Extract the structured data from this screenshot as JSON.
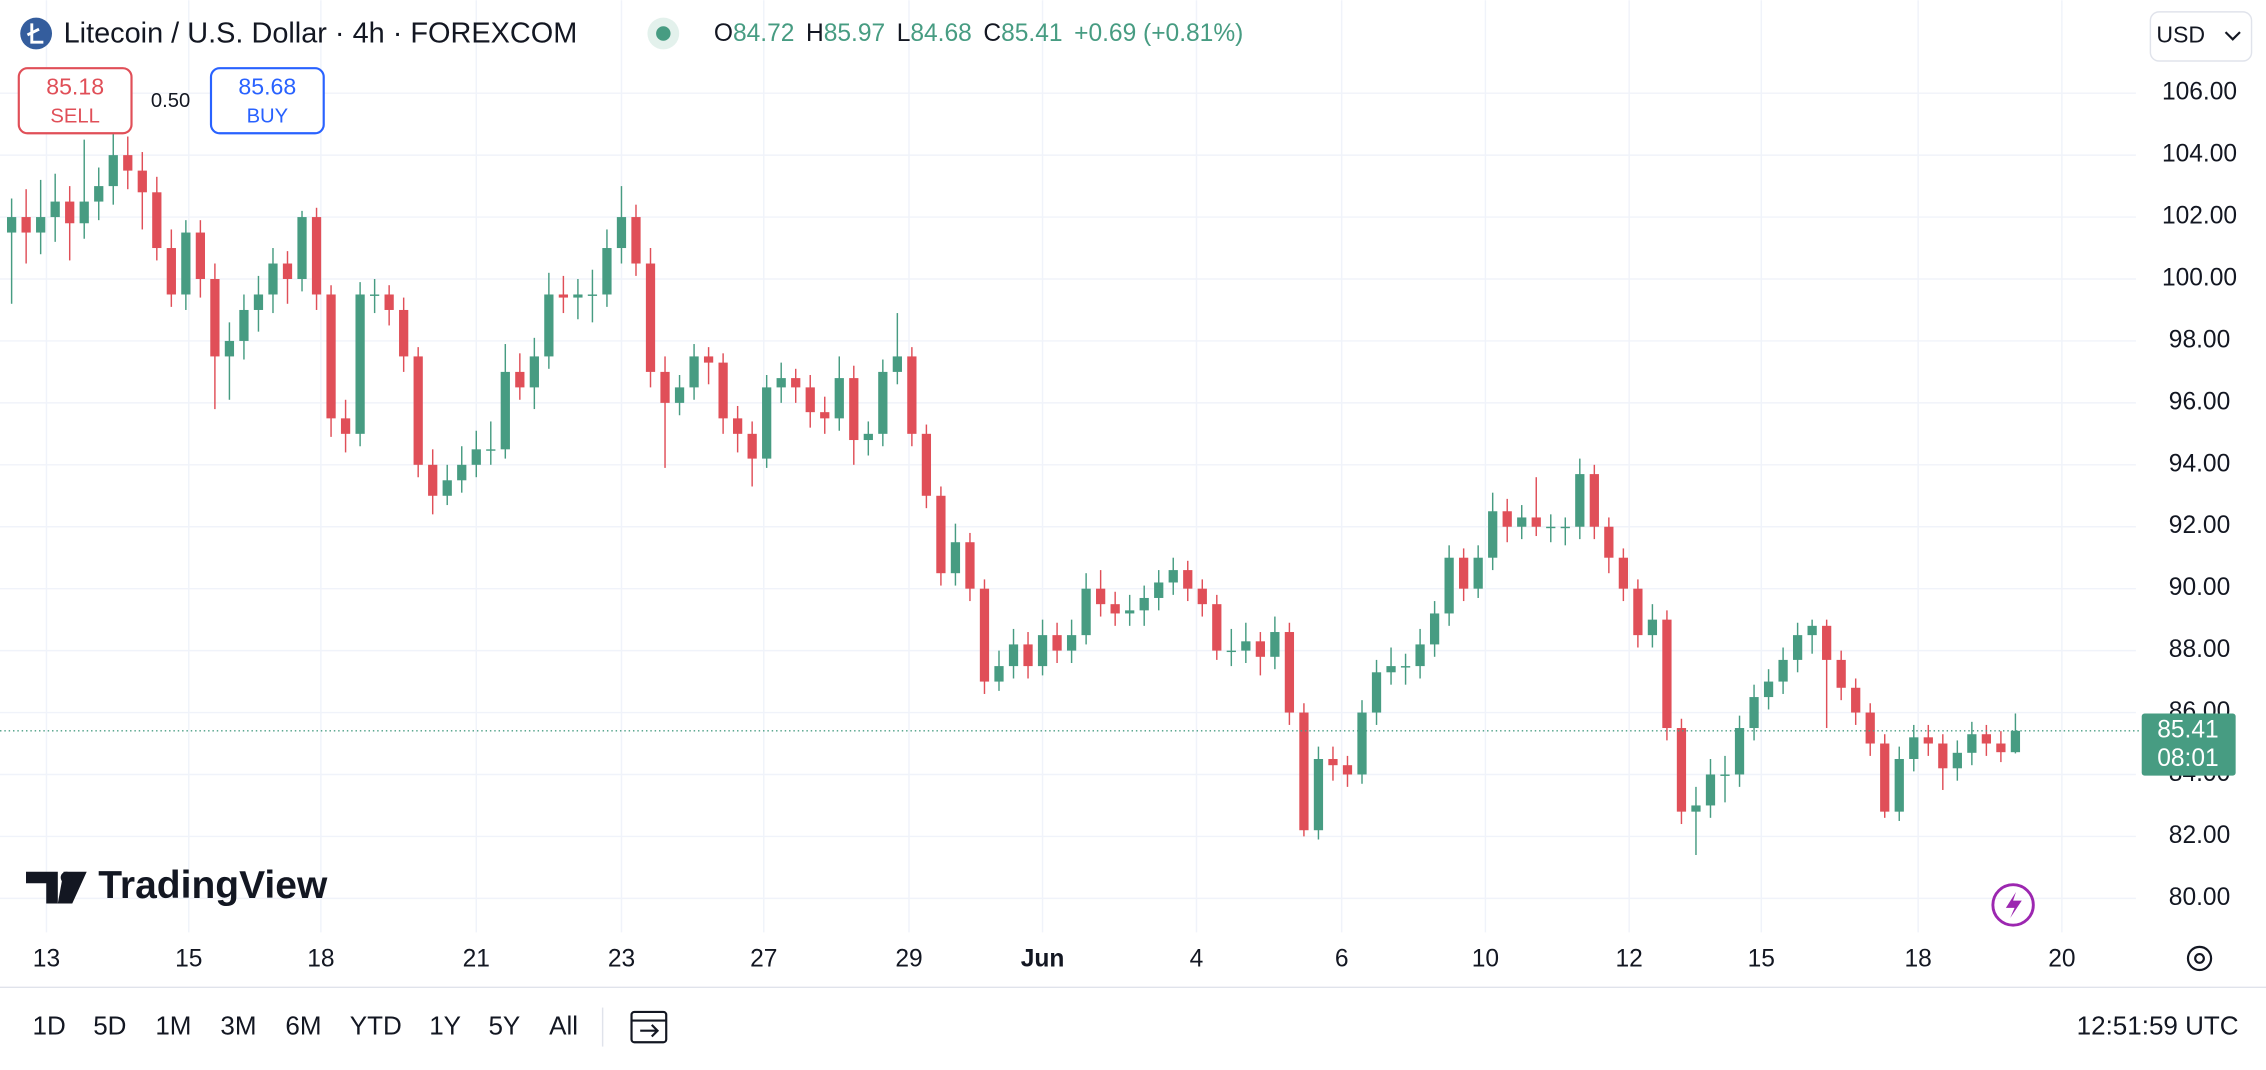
{
  "header": {
    "title": "Litecoin / U.S. Dollar · 4h · FOREXCOM",
    "ohlc_labels": [
      "O",
      "H",
      "L",
      "C"
    ],
    "ohlc_values": [
      84.72,
      85.97,
      84.68,
      85.41
    ],
    "change": "+0.69 (+0.81%)",
    "currency": "USD"
  },
  "trade": {
    "sell_price": 85.18,
    "sell_label": "SELL",
    "spread": "0.50",
    "buy_price": 85.68,
    "buy_label": "BUY"
  },
  "chart_data": {
    "type": "candlestick",
    "up_color": "#479c82",
    "down_color": "#e04f58",
    "grid": true,
    "ylim": [
      78.9,
      109.0
    ],
    "yticks": [
      {
        "value": 80,
        "label": "80.00"
      },
      {
        "value": 82,
        "label": "82.00"
      },
      {
        "value": 84,
        "label": "84.00"
      },
      {
        "value": 86,
        "label": "86.00"
      },
      {
        "value": 88,
        "label": "88.00"
      },
      {
        "value": 90,
        "label": "90.00"
      },
      {
        "value": 92,
        "label": "92.00"
      },
      {
        "value": 94,
        "label": "94.00"
      },
      {
        "value": 96,
        "label": "96.00"
      },
      {
        "value": 98,
        "label": "98.00"
      },
      {
        "value": 100,
        "label": "100.00"
      },
      {
        "value": 102,
        "label": "102.00"
      },
      {
        "value": 104,
        "label": "104.00"
      },
      {
        "value": 106,
        "label": "106.00"
      }
    ],
    "xlim": [
      -0.8,
      146.3
    ],
    "xticks": [
      {
        "value": 2.4,
        "label": "13"
      },
      {
        "value": 12.2,
        "label": "15"
      },
      {
        "value": 21.3,
        "label": "18"
      },
      {
        "value": 32.0,
        "label": "21"
      },
      {
        "value": 42.0,
        "label": "23"
      },
      {
        "value": 51.8,
        "label": "27"
      },
      {
        "value": 61.8,
        "label": "29"
      },
      {
        "value": 71.0,
        "label": "Jun"
      },
      {
        "value": 81.6,
        "label": "4"
      },
      {
        "value": 91.6,
        "label": "6"
      },
      {
        "value": 101.5,
        "label": "10"
      },
      {
        "value": 111.4,
        "label": "12"
      },
      {
        "value": 120.5,
        "label": "15"
      },
      {
        "value": 131.3,
        "label": "18"
      },
      {
        "value": 141.2,
        "label": "20"
      }
    ],
    "last_price": 85.41,
    "countdown": "08:01",
    "candles": [
      [
        101.5,
        102.6,
        99.2,
        102
      ],
      [
        102,
        102.9,
        100.5,
        101.5
      ],
      [
        101.5,
        103.2,
        100.8,
        102
      ],
      [
        102,
        103.4,
        101.2,
        102.5
      ],
      [
        102.5,
        103.0,
        100.6,
        101.8
      ],
      [
        101.8,
        104.5,
        101.3,
        102.5
      ],
      [
        102.5,
        103.6,
        101.9,
        103
      ],
      [
        103,
        104.8,
        102.4,
        104
      ],
      [
        104,
        104.6,
        102.9,
        103.5
      ],
      [
        103.5,
        104.1,
        101.6,
        102.8
      ],
      [
        102.8,
        103.3,
        100.6,
        101
      ],
      [
        101,
        101.6,
        99.1,
        99.5
      ],
      [
        99.5,
        101.9,
        99.0,
        101.5
      ],
      [
        101.5,
        101.9,
        99.4,
        100
      ],
      [
        100,
        100.5,
        95.8,
        97.5
      ],
      [
        97.5,
        98.6,
        96.1,
        98
      ],
      [
        98,
        99.5,
        97.4,
        99
      ],
      [
        99,
        100.1,
        98.3,
        99.5
      ],
      [
        99.5,
        101.0,
        98.9,
        100.5
      ],
      [
        100.5,
        100.9,
        99.2,
        100
      ],
      [
        100,
        102.2,
        99.6,
        102
      ],
      [
        102,
        102.3,
        99.0,
        99.5
      ],
      [
        99.5,
        99.8,
        94.9,
        95.5
      ],
      [
        95.5,
        96.1,
        94.4,
        95
      ],
      [
        95,
        99.9,
        94.6,
        99.5
      ],
      [
        99.5,
        100.0,
        98.9,
        99.5
      ],
      [
        99.5,
        99.8,
        98.5,
        99
      ],
      [
        99,
        99.4,
        97.0,
        97.5
      ],
      [
        97.5,
        97.8,
        93.6,
        94
      ],
      [
        94,
        94.5,
        92.4,
        93
      ],
      [
        93,
        94.0,
        92.7,
        93.5
      ],
      [
        93.5,
        94.6,
        93.1,
        94
      ],
      [
        94,
        95.1,
        93.6,
        94.5
      ],
      [
        94.5,
        95.4,
        94.0,
        94.5
      ],
      [
        94.5,
        97.9,
        94.2,
        97
      ],
      [
        97,
        97.6,
        96.1,
        96.5
      ],
      [
        96.5,
        98.1,
        95.8,
        97.5
      ],
      [
        97.5,
        100.2,
        97.1,
        99.5
      ],
      [
        99.5,
        100.1,
        98.9,
        99.4
      ],
      [
        99.4,
        100.0,
        98.7,
        99.5
      ],
      [
        99.5,
        100.3,
        98.6,
        99.5
      ],
      [
        99.5,
        101.6,
        99.1,
        101
      ],
      [
        101,
        103.0,
        100.5,
        102
      ],
      [
        102,
        102.4,
        100.1,
        100.5
      ],
      [
        100.5,
        101.0,
        96.5,
        97
      ],
      [
        97,
        97.5,
        93.9,
        96
      ],
      [
        96,
        96.9,
        95.6,
        96.5
      ],
      [
        96.5,
        97.9,
        96.1,
        97.5
      ],
      [
        97.5,
        97.8,
        96.6,
        97.3
      ],
      [
        97.3,
        97.6,
        95.0,
        95.5
      ],
      [
        95.5,
        95.9,
        94.4,
        95
      ],
      [
        95,
        95.4,
        93.3,
        94.2
      ],
      [
        94.2,
        96.9,
        93.9,
        96.5
      ],
      [
        96.5,
        97.3,
        96.0,
        96.8
      ],
      [
        96.8,
        97.1,
        96.0,
        96.5
      ],
      [
        96.5,
        96.9,
        95.2,
        95.7
      ],
      [
        95.7,
        96.2,
        95.0,
        95.5
      ],
      [
        95.5,
        97.5,
        95.1,
        96.8
      ],
      [
        96.8,
        97.2,
        94.0,
        94.8
      ],
      [
        94.8,
        95.4,
        94.3,
        95
      ],
      [
        95,
        97.4,
        94.6,
        97
      ],
      [
        97,
        98.9,
        96.6,
        97.5
      ],
      [
        97.5,
        97.8,
        94.6,
        95
      ],
      [
        95,
        95.3,
        92.6,
        93
      ],
      [
        93,
        93.3,
        90.1,
        90.5
      ],
      [
        90.5,
        92.1,
        90.1,
        91.5
      ],
      [
        91.5,
        91.8,
        89.6,
        90
      ],
      [
        90,
        90.3,
        86.6,
        87
      ],
      [
        87,
        88.0,
        86.7,
        87.5
      ],
      [
        87.5,
        88.7,
        87.1,
        88.2
      ],
      [
        88.2,
        88.6,
        87.1,
        87.5
      ],
      [
        87.5,
        89.0,
        87.2,
        88.5
      ],
      [
        88.5,
        88.9,
        87.6,
        88
      ],
      [
        88,
        89.0,
        87.6,
        88.5
      ],
      [
        88.5,
        90.5,
        88.2,
        90
      ],
      [
        90,
        90.6,
        89.1,
        89.5
      ],
      [
        89.5,
        89.9,
        88.8,
        89.2
      ],
      [
        89.2,
        89.8,
        88.8,
        89.3
      ],
      [
        89.3,
        90.1,
        88.8,
        89.7
      ],
      [
        89.7,
        90.6,
        89.3,
        90.2
      ],
      [
        90.2,
        91.0,
        89.8,
        90.6
      ],
      [
        90.6,
        90.9,
        89.6,
        90
      ],
      [
        90,
        90.3,
        89.1,
        89.5
      ],
      [
        89.5,
        89.8,
        87.7,
        88
      ],
      [
        88,
        88.7,
        87.5,
        88
      ],
      [
        88,
        88.9,
        87.6,
        88.3
      ],
      [
        88.3,
        88.6,
        87.2,
        87.8
      ],
      [
        87.8,
        89.1,
        87.4,
        88.6
      ],
      [
        88.6,
        88.9,
        85.6,
        86
      ],
      [
        86,
        86.3,
        82.0,
        82.2
      ],
      [
        82.2,
        84.9,
        81.9,
        84.5
      ],
      [
        84.5,
        84.9,
        83.8,
        84.3
      ],
      [
        84.3,
        84.6,
        83.6,
        84
      ],
      [
        84,
        86.4,
        83.7,
        86
      ],
      [
        86,
        87.7,
        85.6,
        87.3
      ],
      [
        87.3,
        88.1,
        86.9,
        87.5
      ],
      [
        87.5,
        87.9,
        86.9,
        87.5
      ],
      [
        87.5,
        88.7,
        87.1,
        88.2
      ],
      [
        88.2,
        89.6,
        87.8,
        89.2
      ],
      [
        89.2,
        91.4,
        88.8,
        91
      ],
      [
        91,
        91.3,
        89.6,
        90
      ],
      [
        90,
        91.4,
        89.7,
        91
      ],
      [
        91,
        93.1,
        90.6,
        92.5
      ],
      [
        92.5,
        92.9,
        91.5,
        92
      ],
      [
        92,
        92.7,
        91.6,
        92.3
      ],
      [
        92.3,
        93.6,
        91.7,
        92
      ],
      [
        92,
        92.4,
        91.5,
        92
      ],
      [
        92,
        92.3,
        91.4,
        92
      ],
      [
        92,
        94.2,
        91.6,
        93.7
      ],
      [
        93.7,
        94.0,
        91.6,
        92
      ],
      [
        92,
        92.3,
        90.5,
        91
      ],
      [
        91,
        91.3,
        89.6,
        90
      ],
      [
        90,
        90.3,
        88.1,
        88.5
      ],
      [
        88.5,
        89.5,
        88.1,
        89
      ],
      [
        89,
        89.3,
        85.1,
        85.5
      ],
      [
        85.5,
        85.8,
        82.4,
        82.8
      ],
      [
        82.8,
        83.6,
        81.4,
        83
      ],
      [
        83,
        84.5,
        82.6,
        84
      ],
      [
        84,
        84.6,
        83.1,
        84
      ],
      [
        84,
        85.9,
        83.6,
        85.5
      ],
      [
        85.5,
        86.9,
        85.1,
        86.5
      ],
      [
        86.5,
        87.4,
        86.1,
        87
      ],
      [
        87,
        88.1,
        86.6,
        87.7
      ],
      [
        87.7,
        88.9,
        87.3,
        88.5
      ],
      [
        88.5,
        89.0,
        87.9,
        88.8
      ],
      [
        88.8,
        89.0,
        85.5,
        87.7
      ],
      [
        87.7,
        88.0,
        86.4,
        86.8
      ],
      [
        86.8,
        87.1,
        85.6,
        86
      ],
      [
        86,
        86.3,
        84.6,
        85
      ],
      [
        85,
        85.3,
        82.6,
        82.8
      ],
      [
        82.8,
        84.9,
        82.5,
        84.5
      ],
      [
        84.5,
        85.6,
        84.1,
        85.2
      ],
      [
        85.2,
        85.6,
        84.6,
        85
      ],
      [
        85,
        85.3,
        83.5,
        84.2
      ],
      [
        84.2,
        85.1,
        83.8,
        84.7
      ],
      [
        84.7,
        85.7,
        84.3,
        85.3
      ],
      [
        85.3,
        85.6,
        84.6,
        85
      ],
      [
        85,
        85.4,
        84.4,
        84.72
      ],
      [
        84.72,
        85.97,
        84.68,
        85.41
      ]
    ]
  },
  "logo": "TradingView",
  "ranges": [
    "1D",
    "5D",
    "1M",
    "3M",
    "6M",
    "YTD",
    "1Y",
    "5Y",
    "All"
  ],
  "clock": "12:51:59 UTC"
}
